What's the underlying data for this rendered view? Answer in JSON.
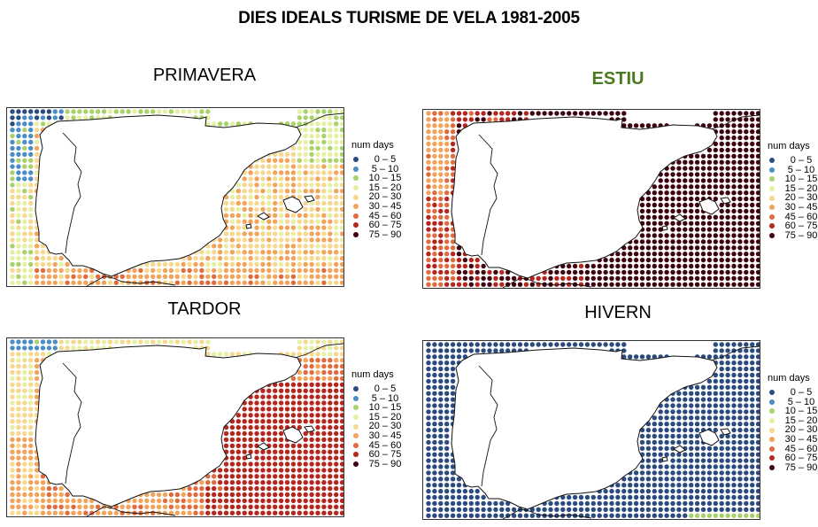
{
  "title": "DIES IDEALS TURISME DE VELA 1981-2005",
  "legend": {
    "title": "num days",
    "classes": [
      {
        "label": "0 – 5",
        "color": "#2b4a7e"
      },
      {
        "label": "5 – 10",
        "color": "#4c8dc4"
      },
      {
        "label": "10 – 15",
        "color": "#a9d26a"
      },
      {
        "label": "15 – 20",
        "color": "#e6f0a4"
      },
      {
        "label": "20 – 30",
        "color": "#f6d98f"
      },
      {
        "label": "30 – 45",
        "color": "#f2a45c"
      },
      {
        "label": "45 – 60",
        "color": "#e06b3f"
      },
      {
        "label": "60 – 75",
        "color": "#b5261e"
      },
      {
        "label": "75 – 90",
        "color": "#3d0410"
      }
    ]
  },
  "panels": [
    {
      "id": "primavera",
      "title": "PRIMAVERA",
      "highlight": false
    },
    {
      "id": "estiu",
      "title": "ESTIU",
      "highlight": true
    },
    {
      "id": "tardor",
      "title": "TARDOR",
      "highlight": false
    },
    {
      "id": "hivern",
      "title": "HIVERN",
      "highlight": false
    }
  ]
}
